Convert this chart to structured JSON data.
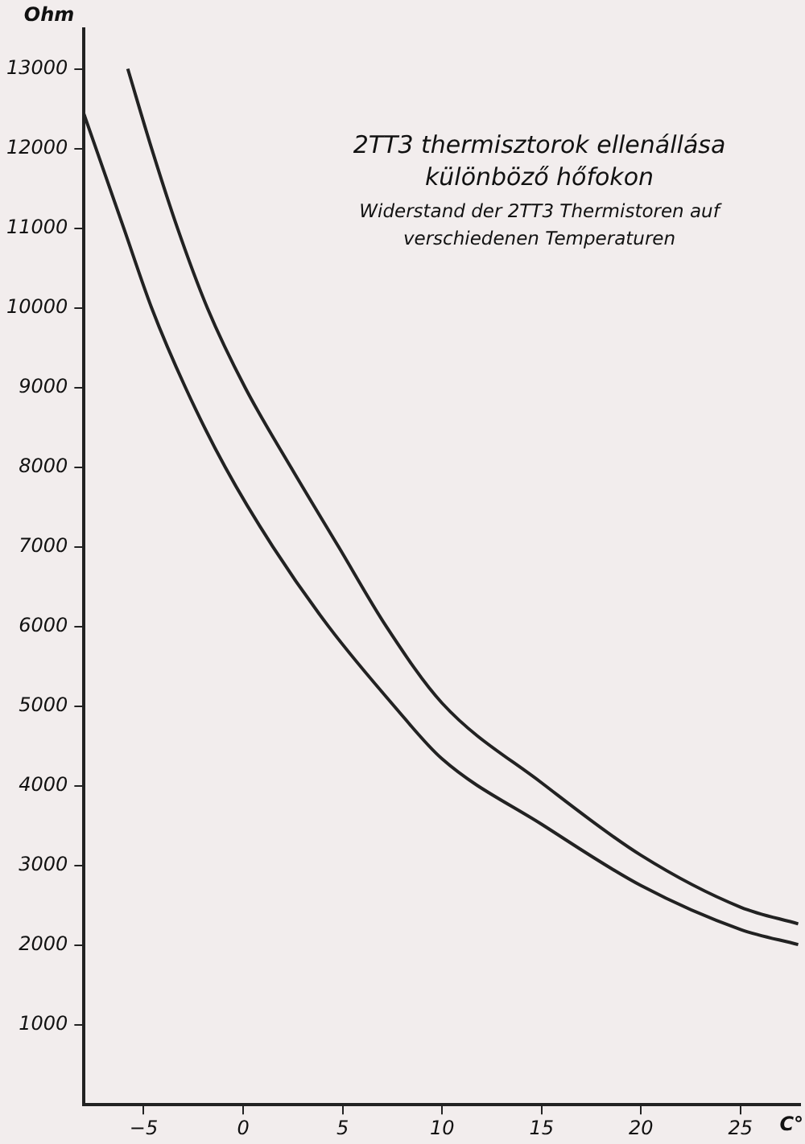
{
  "chart_data": {
    "type": "line",
    "title": "2TT3 thermisztorok ellenállása különböző hőfokon",
    "subtitle": "Widerstand der 2TT3 Thermistoren auf verschiedenen Temperaturen",
    "xlabel": "C°",
    "ylabel": "Ohm",
    "series": [
      {
        "color": "#222222",
        "x": [
          -5.8,
          -4.6,
          -3.3,
          -1.8,
          0.1,
          2.4,
          4.8,
          7.2,
          10,
          15,
          20,
          25,
          27.9
        ],
        "values": [
          13000,
          12000,
          11000,
          10000,
          9000,
          8000,
          7000,
          6000,
          5040,
          4040,
          3130,
          2480,
          2270
        ]
      },
      {
        "color": "#222222",
        "x": [
          -8,
          -6,
          -4.6,
          -2.9,
          -0.9,
          1.5,
          4.3,
          7.6,
          10,
          15,
          20,
          25,
          27.9
        ],
        "values": [
          12430,
          11000,
          10000,
          9000,
          8000,
          7000,
          6000,
          5000,
          4340,
          3520,
          2750,
          2200,
          2010
        ]
      }
    ],
    "xlim": [
      -8,
      28
    ],
    "xticks": [
      -5,
      0,
      5,
      10,
      15,
      20,
      25
    ],
    "ylim": [
      0,
      13500
    ],
    "yticks": [
      1000,
      2000,
      3000,
      4000,
      5000,
      6000,
      7000,
      8000,
      9000,
      10000,
      11000,
      12000,
      13000
    ],
    "grid": false,
    "legend": false,
    "marker": "none",
    "line_style": "solid"
  }
}
